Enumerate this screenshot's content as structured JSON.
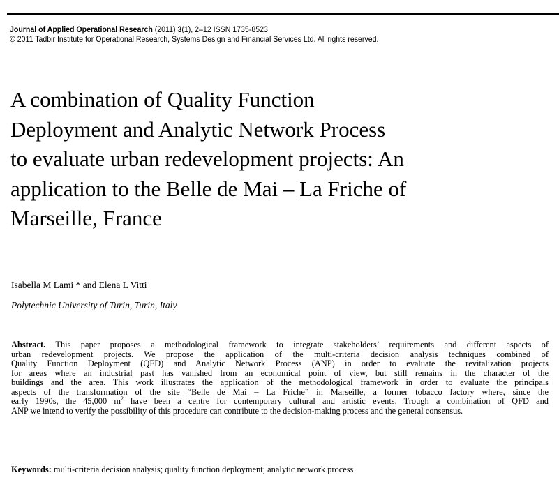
{
  "header": {
    "journal": "Journal of Applied Operational Research",
    "citation": " (2011) ",
    "volume": "3",
    "issue_pages": "(1), 2–12 ISSN 1735-8523",
    "copyright": "© 2011 Tadbir Institute for Operational Research, Systems Design and Financial Services Ltd. All rights reserved."
  },
  "title_lines": [
    "A combination of Quality Function",
    "Deployment and Analytic Network Process",
    "to evaluate urban redevelopment projects: An",
    "application to the Belle de Mai – La Friche of",
    "Marseille, France"
  ],
  "authors": "Isabella M Lami * and Elena L Vitti",
  "affiliation": "Polytechnic University of Turin, Turin, Italy",
  "abstract": {
    "label": "Abstract.",
    "lines": [
      " This paper proposes a methodological framework to integrate stakeholders’ requirements and different aspects of",
      "urban redevelopment projects. We propose the application of the multi-criteria decision analysis techniques combined of",
      "Quality Function Deployment (QFD) and Analytic Network Process (ANP) in order to evaluate the revitalization projects",
      "for areas where an industrial past has vanished from an economical point of view, but still remains in the character of the",
      "buildings and the area. This work illustrates the application of the methodological framework in order to evaluate the principals",
      "aspects of the transformation of the site “Belle de Mai – La Friche” in Marseille, a former tobacco factory where, since the"
    ],
    "line7_before": "early 1990s, the 45,000 m",
    "line7_sup": "2",
    "line7_after": " have been a centre for contemporary cultural and artistic events. Trough a combination of QFD and",
    "last_line": "ANP we intend to verify the possibility of this procedure can contribute to the decision-making process and the general consensus."
  },
  "keywords": {
    "label": "Keywords:",
    "text": " multi-criteria decision analysis; quality function deployment; analytic network process"
  }
}
